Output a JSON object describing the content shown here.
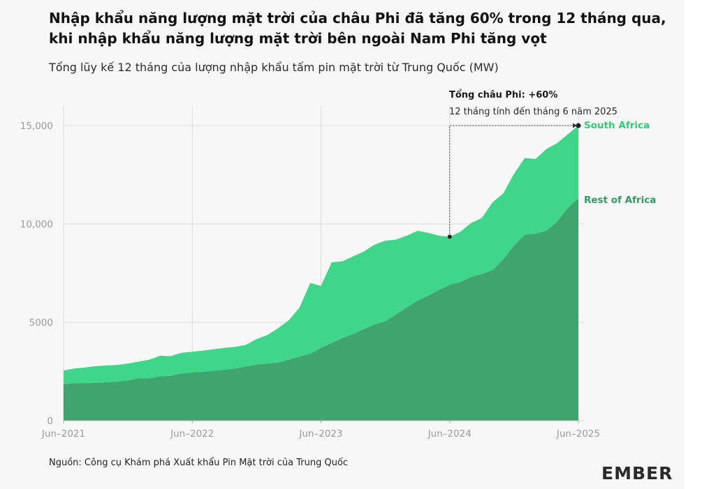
{
  "title": "Nhập khẩu năng lượng mặt trời của châu Phi đã tăng 60% trong 12 tháng qua, khi nhập khẩu năng lượng mặt trời bên ngoài Nam Phi tăng vọt",
  "subtitle": "Tổng lũy kế 12 tháng của lượng nhập khẩu tấm pin mặt trời từ Trung Quốc (MW)",
  "source": "Nguồn: Công cụ Khám phá Xuất khẩu Pin Mặt trời của Trung Quốc",
  "logo_text": "EMBER",
  "colors": {
    "background": "#f7f7f7",
    "rest_of_africa": "#3fa46e",
    "south_africa": "#40d68a",
    "south_africa_label": "#2ecc78",
    "rest_of_africa_label": "#2f9a62",
    "gridline": "#d9d9d9"
  },
  "chart_data": {
    "type": "area",
    "stacked": true,
    "title": "",
    "xlabel": "",
    "ylabel": "",
    "ylim": [
      0,
      15000
    ],
    "y_ticks": [
      0,
      5000,
      10000,
      15000
    ],
    "y_tick_labels": [
      "0",
      "5000",
      "10,000",
      "15,000"
    ],
    "x_ticks": [
      "2021-06",
      "2022-06",
      "2023-06",
      "2024-06",
      "2025-06"
    ],
    "x_tick_labels": [
      "Jun–2021",
      "Jun–2022",
      "Jun–2023",
      "Jun–2024",
      "Jun–2025"
    ],
    "grid": true,
    "x": [
      "2021-06",
      "2021-07",
      "2021-08",
      "2021-09",
      "2021-10",
      "2021-11",
      "2021-12",
      "2022-01",
      "2022-02",
      "2022-03",
      "2022-04",
      "2022-05",
      "2022-06",
      "2022-07",
      "2022-08",
      "2022-09",
      "2022-10",
      "2022-11",
      "2022-12",
      "2023-01",
      "2023-02",
      "2023-03",
      "2023-04",
      "2023-05",
      "2023-06",
      "2023-07",
      "2023-08",
      "2023-09",
      "2023-10",
      "2023-11",
      "2023-12",
      "2024-01",
      "2024-02",
      "2024-03",
      "2024-04",
      "2024-05",
      "2024-06",
      "2024-07",
      "2024-08",
      "2024-09",
      "2024-10",
      "2024-11",
      "2024-12",
      "2025-01",
      "2025-02",
      "2025-03",
      "2025-04",
      "2025-05",
      "2025-06"
    ],
    "series": [
      {
        "name": "Rest of Africa",
        "values": [
          1850,
          1900,
          1900,
          1920,
          1950,
          1980,
          2050,
          2150,
          2150,
          2250,
          2280,
          2400,
          2450,
          2480,
          2530,
          2580,
          2650,
          2750,
          2850,
          2900,
          2950,
          3100,
          3250,
          3400,
          3700,
          3950,
          4200,
          4400,
          4650,
          4900,
          5050,
          5400,
          5750,
          6100,
          6350,
          6650,
          6900,
          7050,
          7300,
          7450,
          7650,
          8200,
          8900,
          9450,
          9500,
          9650,
          10100,
          10800,
          11300
        ]
      },
      {
        "name": "South Africa",
        "values": [
          700,
          750,
          800,
          850,
          850,
          850,
          850,
          850,
          950,
          1050,
          1000,
          1050,
          1050,
          1080,
          1100,
          1120,
          1100,
          1100,
          1300,
          1450,
          1750,
          2000,
          2500,
          3600,
          3150,
          4100,
          3900,
          3950,
          3950,
          4050,
          4100,
          3800,
          3650,
          3550,
          3200,
          2750,
          2450,
          2550,
          2750,
          2850,
          3450,
          3350,
          3650,
          3900,
          3800,
          4150,
          4000,
          3750,
          3700
        ]
      }
    ],
    "series_labels": [
      "South Africa",
      "Rest of Africa"
    ],
    "annotation": {
      "bold_text": "Tổng châu Phi: +60%",
      "text": "12 tháng tính đến tháng 6 năm 2025",
      "from": {
        "x": "2024-06",
        "y": 9350
      },
      "to": {
        "x": "2025-06",
        "y": 15000
      }
    }
  }
}
